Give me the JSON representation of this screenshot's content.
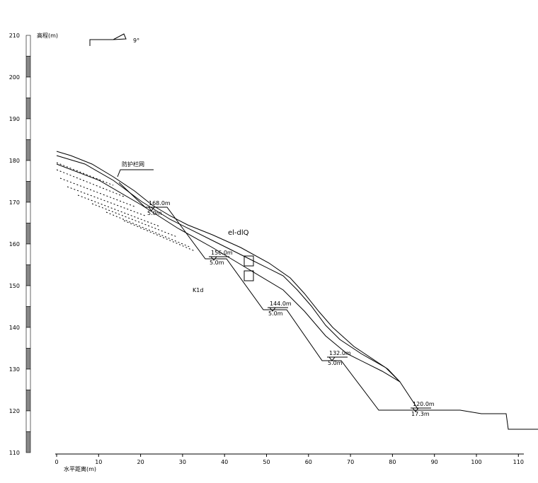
{
  "y_axis": {
    "title": "高程(m)",
    "labels": [
      "210",
      "200",
      "190",
      "180",
      "170",
      "160",
      "150",
      "140",
      "130",
      "120",
      "110"
    ]
  },
  "x_axis": {
    "title": "水平距离(m)",
    "labels": [
      "0",
      "10",
      "20",
      "30",
      "40",
      "50",
      "60",
      "70",
      "80",
      "90",
      "100",
      "110"
    ]
  },
  "direction": "9°",
  "annotations": {
    "fence": "防护栏网",
    "soil": "el-dlQ",
    "rock": "K1d"
  },
  "benches": [
    {
      "elevation": "168.0m",
      "width": "5.0m"
    },
    {
      "elevation": "156.0m",
      "width": "5.0m"
    },
    {
      "elevation": "144.0m",
      "width": "5.0m"
    },
    {
      "elevation": "132.0m",
      "width": "5.0m"
    },
    {
      "elevation": "120.0m",
      "width": "17.3m"
    }
  ]
}
